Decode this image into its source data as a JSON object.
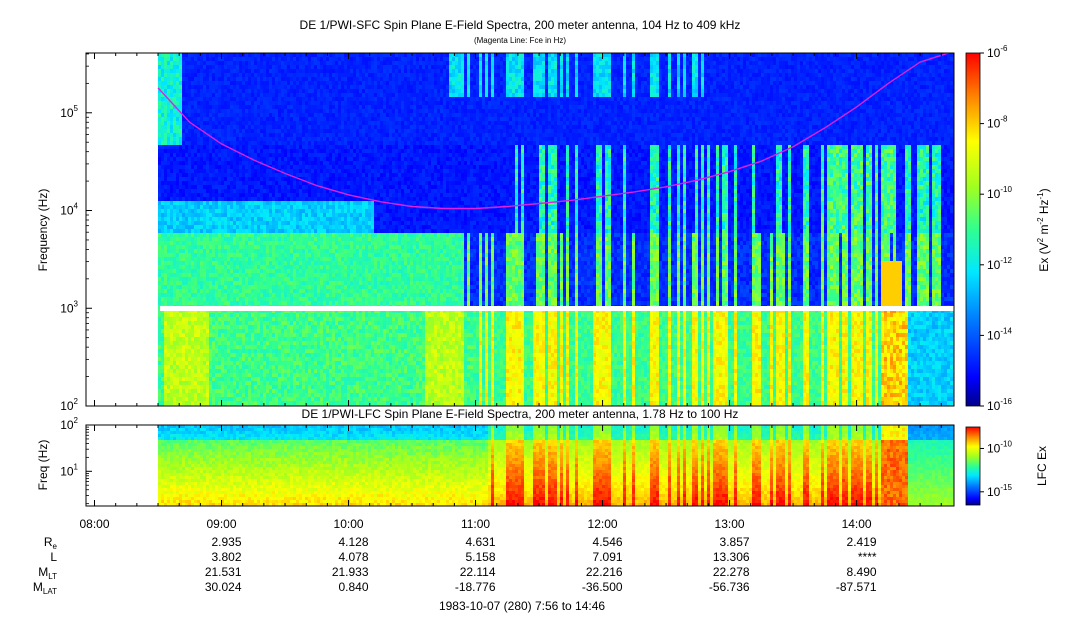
{
  "chart_data": [
    {
      "type": "heatmap",
      "title": "DE 1/PWI-SFC  Spin Plane E-Field Spectra, 200 meter antenna, 104 Hz to 409 kHz",
      "subtitle": "(Magenta Line: Fce in Hz)",
      "ylabel": "Frequency (Hz)",
      "yscale": "log",
      "ylim": [
        100,
        409000
      ],
      "yticks": [
        {
          "value": 100,
          "base": "10",
          "exp": "2"
        },
        {
          "value": 1000,
          "base": "10",
          "exp": "3"
        },
        {
          "value": 10000,
          "base": "10",
          "exp": "4"
        },
        {
          "value": 100000,
          "base": "10",
          "exp": "5"
        }
      ],
      "xlim_hours": [
        7.933,
        14.767
      ],
      "data_start_hours": 8.5,
      "data_end_hours": 14.78,
      "gap_frequency_hz": 1000,
      "colorbar": {
        "label_prefix": "Ex (V",
        "label_sup1": "2",
        "label_mid": " m",
        "label_sup2": "-2",
        "label_mid2": " Hz",
        "label_sup3": "-1",
        "label_suffix": ")",
        "scale": "log",
        "range": [
          1e-16,
          1e-06
        ],
        "ticks": [
          {
            "value": 1e-06,
            "base": "10",
            "exp": "-6"
          },
          {
            "value": 1e-08,
            "base": "10",
            "exp": "-8"
          },
          {
            "value": 1e-10,
            "base": "10",
            "exp": "-10"
          },
          {
            "value": 1e-12,
            "base": "10",
            "exp": "-12"
          },
          {
            "value": 1e-14,
            "base": "10",
            "exp": "-14"
          },
          {
            "value": 1e-16,
            "base": "10",
            "exp": "-16"
          }
        ]
      },
      "series": [
        {
          "line": "Fce",
          "color": "#e020e0",
          "x_hours": [
            8.5,
            8.75,
            9.0,
            9.25,
            9.5,
            9.75,
            10.0,
            10.25,
            10.5,
            10.75,
            11.0,
            11.25,
            11.5,
            11.75,
            12.0,
            12.25,
            12.5,
            12.75,
            13.0,
            13.25,
            13.5,
            13.75,
            14.0,
            14.25,
            14.5,
            14.75
          ],
          "y_hz": [
            180000,
            80000,
            48000,
            33000,
            24000,
            18000,
            14500,
            12300,
            11000,
            10500,
            10500,
            11000,
            11800,
            12700,
            14000,
            15500,
            17500,
            20500,
            25000,
            32000,
            45000,
            70000,
            115000,
            200000,
            330000,
            420000
          ]
        }
      ]
    },
    {
      "type": "heatmap",
      "title": "DE 1/PWI-LFC  Spin Plane E-Field Spectra, 200 meter antenna, 1.78 Hz to 100 Hz",
      "ylabel": "Freq (Hz)",
      "yscale": "log",
      "ylim": [
        1.78,
        100
      ],
      "yticks": [
        {
          "value": 10,
          "base": "10",
          "exp": "1"
        },
        {
          "value": 100,
          "base": "10",
          "exp": "2"
        }
      ],
      "colorbar": {
        "label": "LFC Ex",
        "scale": "log",
        "range": [
          3e-17,
          3e-08
        ],
        "ticks": [
          {
            "value": 1e-10,
            "base": "10",
            "exp": "-10"
          },
          {
            "value": 1e-15,
            "base": "10",
            "exp": "-15"
          }
        ]
      }
    }
  ],
  "x_axis": {
    "ticks": [
      {
        "hours": 8.0,
        "label": "08:00"
      },
      {
        "hours": 9.0,
        "label": "09:00"
      },
      {
        "hours": 10.0,
        "label": "10:00"
      },
      {
        "hours": 11.0,
        "label": "11:00"
      },
      {
        "hours": 12.0,
        "label": "12:00"
      },
      {
        "hours": 13.0,
        "label": "13:00"
      },
      {
        "hours": 14.0,
        "label": "14:00"
      }
    ]
  },
  "ephemeris": {
    "rows": [
      {
        "label": "R",
        "sub": "e",
        "values": [
          "2.935",
          "4.128",
          "4.631",
          "4.546",
          "3.857",
          "2.419"
        ]
      },
      {
        "label": "L",
        "sub": "",
        "values": [
          "3.802",
          "4.078",
          "5.158",
          "7.091",
          "13.306",
          "****"
        ]
      },
      {
        "label": "M",
        "sub": "LT",
        "values": [
          "21.531",
          "21.933",
          "22.114",
          "22.216",
          "22.278",
          "8.490"
        ]
      },
      {
        "label": "M",
        "sub": "LAT",
        "values": [
          "30.024",
          "0.840",
          "-18.776",
          "-36.500",
          "-56.736",
          "-87.571"
        ]
      }
    ]
  },
  "footer": "1983-10-07 (280) 7:56 to 14:46"
}
